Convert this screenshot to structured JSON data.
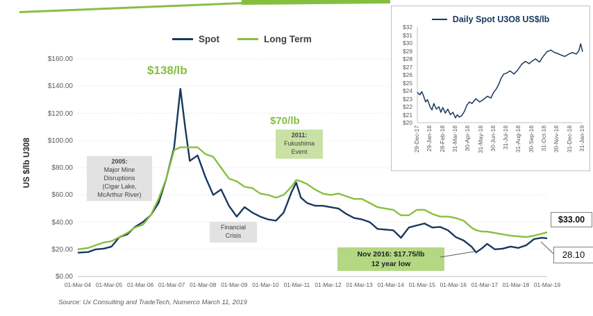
{
  "colors": {
    "navy": "#17375e",
    "green": "#86bf40",
    "box_green": "#c9e1a4",
    "box_green_dark": "#b4d784",
    "box_gray": "#e2e2e2",
    "border_gray": "#7f7f7f"
  },
  "legend": {
    "spot": "Spot",
    "long_term": "Long Term"
  },
  "annotations": {
    "peak_price": "$138/lb",
    "pre_fukushima_price": "$70/lb",
    "fukushima": [
      "2011:",
      "Fukushima",
      "Event"
    ],
    "mine_2005": [
      "2005:",
      "Major Mine",
      "Disruptions",
      "(Cigar Lake,",
      "McArthur River)"
    ],
    "financial_crisis": [
      "Financial",
      "Crisis"
    ],
    "low_2016": [
      "Nov 2016: $17.75/lb",
      "12 year low"
    ],
    "long_term_price": "$33.00",
    "spot_price": "28.10"
  },
  "source": "Source: Ux Consulting and TradeTech, Numerco March 11, 2019",
  "chart_data": [
    {
      "type": "line",
      "title": "",
      "xlabel": "",
      "ylabel": "US $/lb U308",
      "legend_position": "top",
      "grid": true,
      "xlim": [
        2004.17,
        2019.17
      ],
      "ylim": [
        0,
        160
      ],
      "x_tick_labels": [
        "01-Mar-04",
        "01-Mar-05",
        "01-Mar-06",
        "01-Mar-07",
        "01-Mar-08",
        "01-Mar-09",
        "01-Mar-10",
        "01-Mar-11",
        "01-Mar-12",
        "01-Mar-13",
        "01-Mar-14",
        "01-Mar-15",
        "01-Mar-16",
        "01-Mar-17",
        "01-Mar-18",
        "01-Mar-19"
      ],
      "y_tick_labels": [
        "$0.00",
        "$20.00",
        "$40.00",
        "$60.00",
        "$80.00",
        "$100.00",
        "$120.00",
        "$140.00",
        "$160.00"
      ],
      "x": [
        2004.17,
        2004.5,
        2004.75,
        2005.0,
        2005.25,
        2005.5,
        2005.75,
        2006.0,
        2006.25,
        2006.5,
        2006.75,
        2007.0,
        2007.25,
        2007.45,
        2007.6,
        2007.75,
        2008.0,
        2008.25,
        2008.5,
        2008.75,
        2009.0,
        2009.25,
        2009.5,
        2009.75,
        2010.0,
        2010.25,
        2010.5,
        2010.75,
        2011.0,
        2011.15,
        2011.3,
        2011.5,
        2011.75,
        2012.0,
        2012.25,
        2012.5,
        2012.75,
        2013.0,
        2013.25,
        2013.5,
        2013.75,
        2014.0,
        2014.25,
        2014.5,
        2014.75,
        2015.0,
        2015.25,
        2015.5,
        2015.75,
        2016.0,
        2016.25,
        2016.5,
        2016.75,
        2016.9,
        2017.1,
        2017.25,
        2017.5,
        2017.75,
        2018.0,
        2018.25,
        2018.5,
        2018.75,
        2019.0,
        2019.17
      ],
      "series": [
        {
          "name": "Spot",
          "color": "#17375e",
          "values": [
            17.5,
            18,
            20,
            20.5,
            22,
            29,
            31,
            36.5,
            40,
            45,
            54,
            72,
            95,
            138,
            110,
            85,
            89,
            73,
            60,
            64,
            52,
            44,
            51,
            47,
            44,
            42,
            41,
            47,
            62,
            69,
            58,
            54,
            52,
            52,
            51,
            50,
            46,
            43,
            42,
            40,
            35,
            34.5,
            34,
            28.5,
            36,
            37.5,
            39,
            36,
            36.5,
            34,
            29,
            26.5,
            22,
            17.75,
            21,
            24,
            20,
            20.5,
            22,
            21,
            23,
            27.5,
            28.5,
            28.1
          ]
        },
        {
          "name": "Long Term",
          "color": "#86bf40",
          "values": [
            20,
            21,
            23,
            25,
            26,
            29,
            32,
            36,
            38,
            45,
            57,
            72,
            93,
            95,
            95,
            95,
            95,
            90,
            88,
            80,
            72,
            70,
            66,
            65,
            61,
            60,
            58,
            60,
            66,
            71,
            70,
            68,
            64,
            61,
            60,
            61,
            59,
            57,
            57,
            54,
            51,
            50,
            49,
            45,
            45,
            49,
            49,
            46,
            44,
            44,
            43,
            41,
            36,
            34,
            33,
            33,
            32,
            31,
            30,
            29.5,
            29,
            30,
            31.5,
            32.5
          ]
        }
      ]
    },
    {
      "type": "line",
      "title": "Daily Spot U3O8 US$/lb",
      "xlabel": "",
      "ylabel": "",
      "grid": false,
      "xlim": [
        0,
        13
      ],
      "ylim": [
        20,
        32
      ],
      "x_tick_labels": [
        "29-Dec-17",
        "29-Jan-18",
        "28-Feb-18",
        "31-Mar-18",
        "30-Apr-18",
        "31-May-18",
        "30-Jun-18",
        "31-Jul-18",
        "31-Aug-18",
        "30-Sep-18",
        "31-Oct-18",
        "30-Nov-18",
        "31-Dec-18",
        "31-Jan-19"
      ],
      "y_tick_labels": [
        "$20",
        "$21",
        "$22",
        "$23",
        "$24",
        "$25",
        "$26",
        "$27",
        "$28",
        "$29",
        "$30",
        "$31",
        "$32"
      ],
      "x": [
        0,
        0.2,
        0.35,
        0.5,
        0.65,
        0.8,
        1.0,
        1.15,
        1.3,
        1.5,
        1.7,
        1.85,
        2.0,
        2.2,
        2.4,
        2.6,
        2.8,
        3.0,
        3.15,
        3.3,
        3.5,
        3.7,
        3.9,
        4.1,
        4.3,
        4.6,
        4.9,
        5.2,
        5.5,
        5.8,
        6.0,
        6.2,
        6.4,
        6.6,
        6.8,
        7.0,
        7.3,
        7.6,
        7.9,
        8.2,
        8.5,
        8.8,
        9.0,
        9.3,
        9.6,
        9.9,
        10.2,
        10.5,
        10.8,
        11.0,
        11.3,
        11.6,
        11.9,
        12.2,
        12.5,
        12.7,
        12.85,
        13.0
      ],
      "series": [
        {
          "name": "Daily Spot U3O8 US$/lb",
          "color": "#17375e",
          "values": [
            23.8,
            23.5,
            23.9,
            23.3,
            22.6,
            22.9,
            22.0,
            21.6,
            22.4,
            21.7,
            22.0,
            21.3,
            21.9,
            21.2,
            21.7,
            21.0,
            21.3,
            20.6,
            21.0,
            20.7,
            20.9,
            21.4,
            22.2,
            22.6,
            22.4,
            23.0,
            22.6,
            22.9,
            23.3,
            23.1,
            23.8,
            24.2,
            24.8,
            25.6,
            26.1,
            26.2,
            26.5,
            26.1,
            26.6,
            27.3,
            27.7,
            27.4,
            27.7,
            28.0,
            27.6,
            28.3,
            28.9,
            29.1,
            28.8,
            28.7,
            28.5,
            28.3,
            28.6,
            28.8,
            28.6,
            29.0,
            29.9,
            28.9
          ]
        }
      ]
    }
  ]
}
